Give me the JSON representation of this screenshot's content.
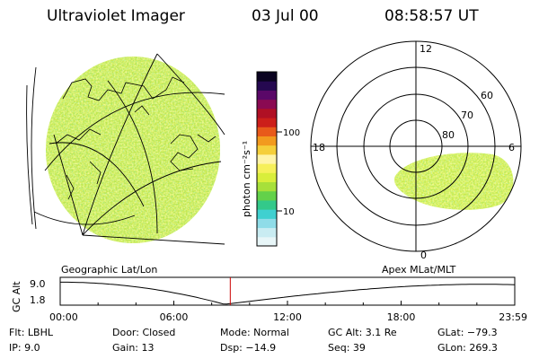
{
  "header": {
    "title": "Ultraviolet Imager",
    "date": "03 Jul 00",
    "time": "08:58:57 UT"
  },
  "colorbar": {
    "unit_label": "photon cm⁻²s⁻¹",
    "tick_100": "100",
    "tick_10": "10",
    "colors": [
      "#e8f6f8",
      "#c9ecf2",
      "#8fdce8",
      "#3fd0d0",
      "#33c98a",
      "#63d14a",
      "#a7e03a",
      "#d9ee3b",
      "#f6f05a",
      "#fff4a8",
      "#f5cf3a",
      "#f29a1e",
      "#e85a1a",
      "#cc1f1a",
      "#b01024",
      "#8a0a52",
      "#5a0868",
      "#250850",
      "#0a0320"
    ]
  },
  "left_panel": {
    "label": "Geographic Lat/Lon"
  },
  "right_panel": {
    "label": "Apex MLat/MLT",
    "mlt_12": "12",
    "mlt_18": "18",
    "mlt_6": "6",
    "mlt_0": "0",
    "lat_60": "60",
    "lat_70": "70",
    "lat_80": "80"
  },
  "altitude_plot": {
    "ylabel": "GC Alt",
    "y_top": "9.0",
    "y_bottom": "1.8",
    "x_ticks": [
      "00:00",
      "06:00",
      "12:00",
      "18:00",
      "23:59"
    ],
    "current_hour": 8.98
  },
  "info": {
    "flt": "Flt: LBHL",
    "ip": "IP: 9.0",
    "door": "Door: Closed",
    "gain": "Gain: 13",
    "mode": "Mode: Normal",
    "dsp": "Dsp: −14.9",
    "gcalt": "GC Alt: 3.1 Re",
    "seq": "Seq: 39",
    "glat": "GLat: −79.3",
    "glon": "GLon: 269.3"
  }
}
